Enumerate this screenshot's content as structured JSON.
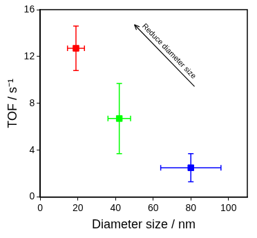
{
  "chart_data": {
    "type": "scatter",
    "x_label": "Diameter size / nm",
    "y_label": "TOF / s⁻¹",
    "x": [
      19,
      42,
      80
    ],
    "values": [
      12.7,
      6.7,
      2.5
    ],
    "x_error": [
      4.5,
      6,
      16
    ],
    "y_error": [
      1.9,
      3,
      1.2
    ],
    "colors": [
      "#ff0000",
      "#00ff00",
      "#0000ff"
    ],
    "marker": "square",
    "xlim": [
      0,
      110
    ],
    "xticks": [
      0,
      20,
      40,
      60,
      80,
      100
    ],
    "ylim": [
      0,
      16
    ],
    "yticks": [
      0,
      4,
      8,
      12,
      16
    ],
    "grid": false,
    "annotations": [
      {
        "text": "Reduce diameter size"
      }
    ]
  }
}
